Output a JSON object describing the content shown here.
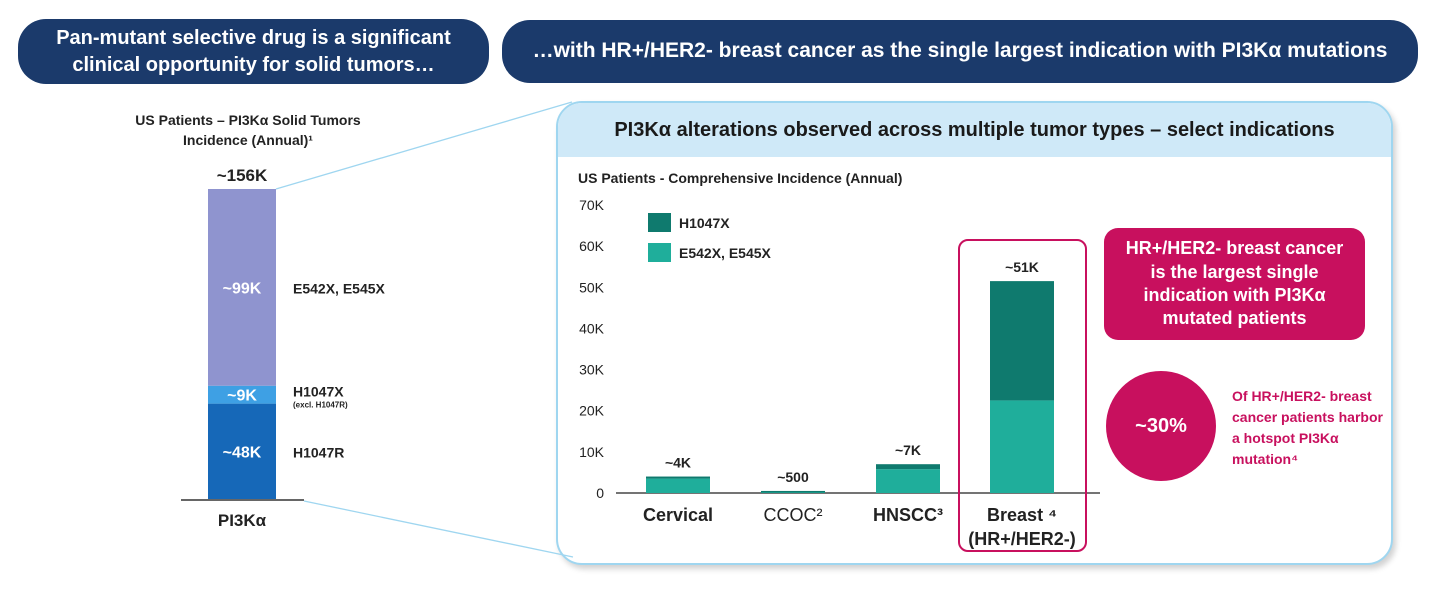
{
  "header": {
    "left_pill": "Pan-mutant selective drug is a significant clinical opportunity for solid tumors…",
    "right_pill": "…with HR+/HER2- breast cancer as the single largest indication with PI3Kα mutations"
  },
  "left_chart": {
    "title": "US Patients – PI3Kα Solid Tumors Incidence (Annual)¹",
    "total_label": "~156K",
    "category_label": "PI3Kα",
    "segments": [
      {
        "name": "H1047R",
        "value": 48,
        "label": "~48K",
        "color": "#1668b8"
      },
      {
        "name": "H1047X",
        "sub": "(excl. H1047R)",
        "value": 9,
        "label": "~9K",
        "color": "#3ea0e4"
      },
      {
        "name": "E542X, E545X",
        "value": 99,
        "label": "~99K",
        "color": "#8f94cf"
      }
    ]
  },
  "panel": {
    "title": "PI3Kα alterations observed across multiple tumor types – select indications",
    "chart_subtitle": "US Patients - Comprehensive Incidence (Annual)"
  },
  "chart_data": {
    "type": "bar",
    "stacked": true,
    "title": "US Patients - Comprehensive Incidence (Annual)",
    "categories": [
      "Cervical",
      "CCOC²",
      "HNSCC³",
      "Breast ⁴ (HR+/HER2-)"
    ],
    "category_lines": [
      [
        "Cervical"
      ],
      [
        "CCOC²"
      ],
      [
        "HNSCC³"
      ],
      [
        "Breast ⁴",
        "(HR+/HER2-)"
      ]
    ],
    "series": [
      {
        "name": "E542X, E545X",
        "color": "#1fae9b",
        "values": [
          3500,
          400,
          5800,
          22500
        ]
      },
      {
        "name": "H1047X",
        "color": "#0f7a6e",
        "values": [
          500,
          100,
          1200,
          29000
        ]
      }
    ],
    "totals_labels": [
      "~4K",
      "~500",
      "~7K",
      "~51K"
    ],
    "ylim": [
      0,
      70000
    ],
    "yticks": [
      "0",
      "10K",
      "20K",
      "30K",
      "40K",
      "50K",
      "60K",
      "70K"
    ],
    "legend": [
      "H1047X",
      "E542X, E545X"
    ],
    "legend_position": "top-left"
  },
  "callouts": {
    "box_text": "HR+/HER2- breast cancer is the largest single indication with PI3Kα mutated patients",
    "circle_value": "~30%",
    "circle_note": "Of HR+/HER2- breast cancer patients harbor a hotspot PI3Kα mutation⁴"
  }
}
